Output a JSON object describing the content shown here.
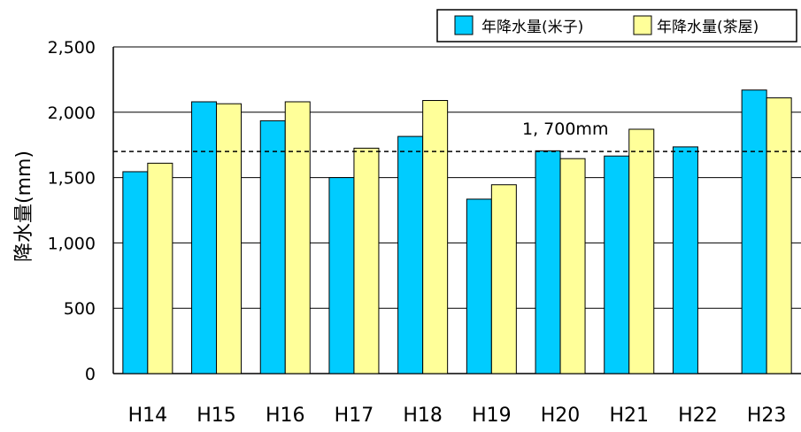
{
  "chart_data": {
    "type": "bar",
    "categories": [
      "H14",
      "H15",
      "H16",
      "H17",
      "H18",
      "H19",
      "H20",
      "H21",
      "H22",
      "H23"
    ],
    "series": [
      {
        "name": "年降水量(米子)",
        "color": "#00CCFF",
        "values": [
          1545,
          2080,
          1935,
          1500,
          1815,
          1335,
          1705,
          1665,
          1735,
          2170
        ]
      },
      {
        "name": "年降水量(茶屋)",
        "color": "#FFFF99",
        "values": [
          1610,
          2065,
          2080,
          1725,
          2090,
          1445,
          1645,
          1870,
          null,
          2110
        ]
      }
    ],
    "ylabel": "降水量(mm)",
    "ylim": [
      0,
      2500
    ],
    "yticks": [
      0,
      500,
      1000,
      1500,
      2000,
      2500
    ],
    "ytick_labels": [
      "0",
      "500",
      "1,000",
      "1,500",
      "2,000",
      "2,500"
    ],
    "reference_line": {
      "value": 1700,
      "label": "1, 700mm",
      "style": "dashed"
    },
    "grid": true,
    "legend_position": "top-right"
  }
}
